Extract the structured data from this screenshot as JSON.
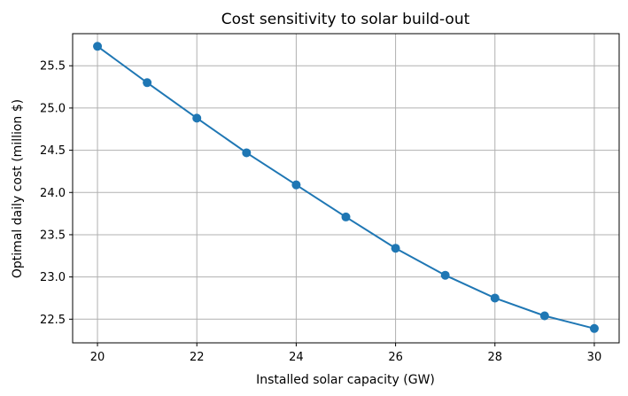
{
  "chart_data": {
    "type": "line",
    "title": "Cost sensitivity to solar build-out",
    "xlabel": "Installed solar capacity (GW)",
    "ylabel": "Optimal daily cost (million $)",
    "x": [
      20,
      21,
      22,
      23,
      24,
      25,
      26,
      27,
      28,
      29,
      30
    ],
    "series": [
      {
        "values": [
          25.73,
          25.3,
          24.88,
          24.47,
          24.09,
          23.71,
          23.34,
          23.02,
          22.75,
          22.54,
          22.39
        ],
        "color": "#1f77b4",
        "marker": "circle"
      }
    ],
    "xlim": [
      19.5,
      30.5
    ],
    "ylim": [
      22.22,
      25.88
    ],
    "xticks": [
      20,
      22,
      24,
      26,
      28,
      30
    ],
    "yticks": [
      22.5,
      23.0,
      23.5,
      24.0,
      24.5,
      25.0,
      25.5
    ],
    "grid": true
  }
}
